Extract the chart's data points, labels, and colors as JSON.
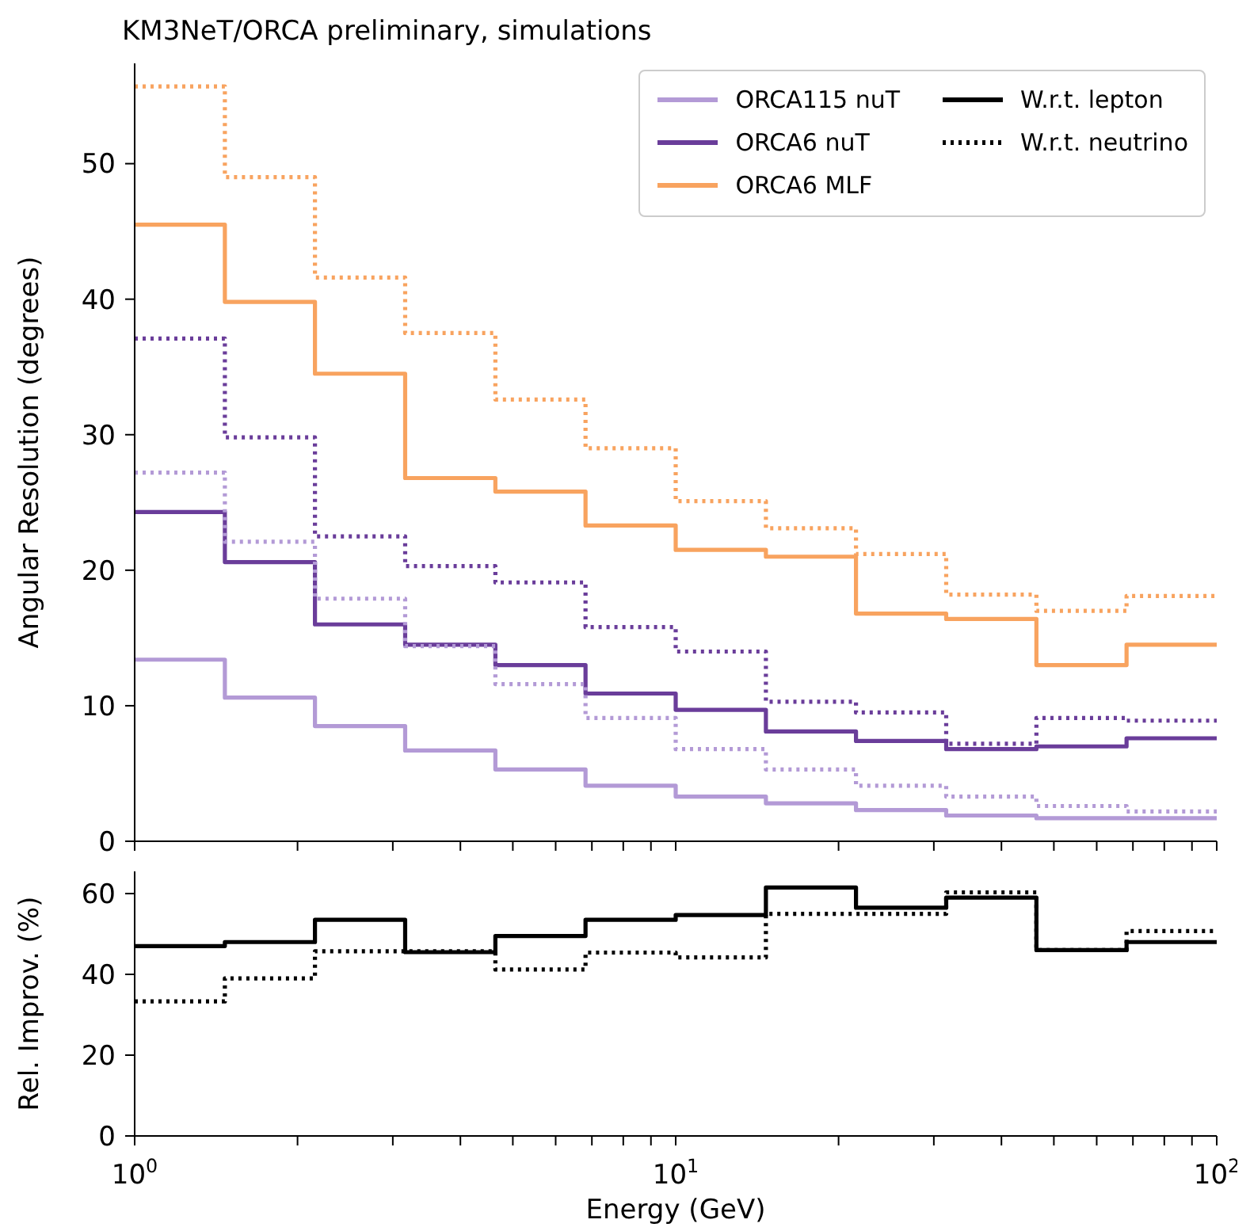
{
  "chart_data": [
    {
      "type": "step",
      "title": "KM3NeT/ORCA preliminary, simulations",
      "ylabel": "Angular Resolution (degrees)",
      "log": "x",
      "xlim": [
        1,
        100
      ],
      "xticks": [
        1,
        2,
        3,
        4,
        5,
        6,
        7,
        8,
        9,
        10,
        20,
        30,
        40,
        50,
        60,
        70,
        80,
        90,
        100
      ],
      "ylim": [
        0,
        57.4
      ],
      "yticks": [
        0,
        10,
        20,
        30,
        40,
        50
      ],
      "tick_labels": "y",
      "grid": false,
      "legend": "top right",
      "marker": "none",
      "x": [
        1,
        1.468,
        2.154,
        3.162,
        4.642,
        6.813,
        10,
        14.68,
        21.54,
        31.62,
        46.42,
        68.13,
        100
      ],
      "series": [
        {
          "name": "ORCA115 nuT",
          "color": "#b39ad6",
          "line_style": "solid",
          "values": [
            13.4,
            10.6,
            8.5,
            6.7,
            5.3,
            4.1,
            3.3,
            2.8,
            2.3,
            1.9,
            1.7,
            1.7,
            1.7
          ]
        },
        {
          "name": "ORCA6 nuT",
          "color": "#6a3d9a",
          "line_style": "solid",
          "values": [
            24.3,
            20.6,
            16.0,
            14.5,
            13.0,
            10.9,
            9.7,
            8.1,
            7.4,
            6.8,
            7.0,
            7.6,
            7.6
          ]
        },
        {
          "name": "ORCA6 MLF",
          "color": "#f8a35f",
          "line_style": "solid",
          "values": [
            45.5,
            39.8,
            34.5,
            26.8,
            25.8,
            23.3,
            21.5,
            21.0,
            16.8,
            16.4,
            13.0,
            14.5,
            14.5
          ]
        },
        {
          "color": "#b39ad6",
          "line_style": "dotted",
          "values": [
            27.2,
            22.1,
            17.9,
            14.4,
            11.6,
            9.1,
            6.8,
            5.3,
            4.1,
            3.3,
            2.6,
            2.2,
            2.2
          ]
        },
        {
          "color": "#6a3d9a",
          "line_style": "dotted",
          "values": [
            37.1,
            29.8,
            22.5,
            20.3,
            19.1,
            15.8,
            14.0,
            10.3,
            9.5,
            7.2,
            9.1,
            8.9,
            8.9
          ]
        },
        {
          "color": "#f8a35f",
          "line_style": "dotted",
          "values": [
            55.7,
            49.0,
            41.6,
            37.5,
            32.6,
            29.0,
            25.1,
            23.1,
            21.2,
            18.2,
            17.0,
            18.1,
            18.1
          ]
        }
      ]
    },
    {
      "type": "step",
      "xlabel": "Energy (GeV)",
      "ylabel": "Rel. Improv. (%)",
      "log": "x",
      "xlim": [
        1,
        100
      ],
      "xticks": [
        {
          "value": 1,
          "label": "10$^{0}$"
        },
        {
          "value": 2,
          "label": null
        },
        {
          "value": 3,
          "label": null
        },
        {
          "value": 4,
          "label": null
        },
        {
          "value": 5,
          "label": null
        },
        {
          "value": 6,
          "label": null
        },
        {
          "value": 7,
          "label": null
        },
        {
          "value": 8,
          "label": null
        },
        {
          "value": 9,
          "label": null
        },
        {
          "value": 10,
          "label": "10$^{1}$"
        },
        {
          "value": 20,
          "label": null
        },
        {
          "value": 30,
          "label": null
        },
        {
          "value": 40,
          "label": null
        },
        {
          "value": 50,
          "label": null
        },
        {
          "value": 60,
          "label": null
        },
        {
          "value": 70,
          "label": null
        },
        {
          "value": 80,
          "label": null
        },
        {
          "value": 90,
          "label": null
        },
        {
          "value": 100,
          "label": "10$^{2}$"
        }
      ],
      "ylim": [
        0,
        65.5
      ],
      "yticks": [
        0,
        20,
        40,
        60
      ],
      "grid": false,
      "legend": "top",
      "marker": "none",
      "x": [
        1,
        1.468,
        2.154,
        3.162,
        4.642,
        6.813,
        10,
        14.68,
        21.54,
        31.62,
        46.42,
        68.13,
        100
      ],
      "series": [
        {
          "name": "W.r.t. lepton",
          "color": "#000000",
          "line_style": "solid",
          "values": [
            47,
            48,
            53.5,
            45.5,
            49.5,
            53.5,
            54.7,
            61.5,
            56.5,
            59,
            46,
            48,
            48
          ]
        },
        {
          "name": "W.r.t. neutrino",
          "color": "#000000",
          "line_style": "dotted",
          "values": [
            33.3,
            39,
            45.7,
            45.7,
            41.2,
            45.4,
            44.2,
            55,
            55,
            60.3,
            46,
            50.7,
            50.7
          ]
        }
      ]
    }
  ]
}
